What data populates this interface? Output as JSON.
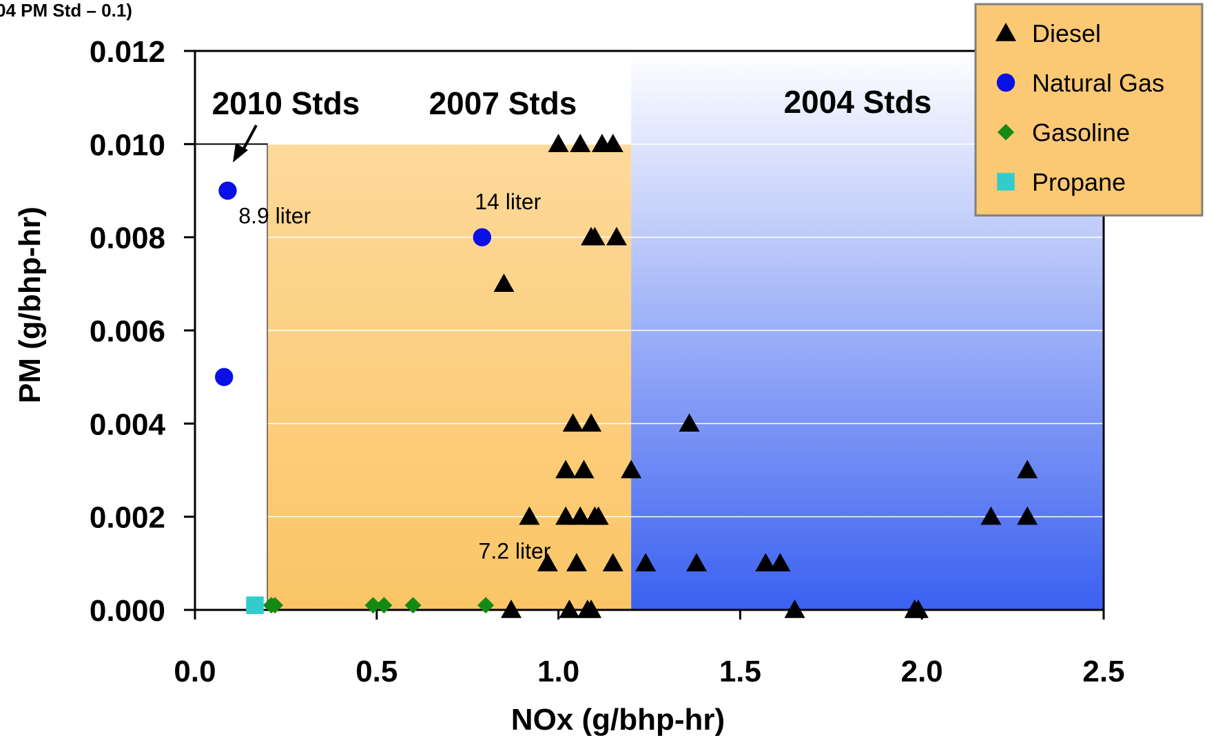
{
  "chart_data": {
    "type": "scatter",
    "xlabel": "NOx (g/bhp-hr)",
    "ylabel": "PM (g/bhp-hr)",
    "xlim": [
      0,
      2.5
    ],
    "ylim": [
      0,
      0.012
    ],
    "x_ticks": [
      "0.0",
      "0.5",
      "1.0",
      "1.5",
      "2.0",
      "2.5"
    ],
    "y_ticks": [
      "0.000",
      "0.002",
      "0.004",
      "0.006",
      "0.008",
      "0.010",
      "0.012"
    ],
    "grid": "horizontal",
    "legend_position": "top-right",
    "top_left_partial_text": "04 PM Std – 0.1)",
    "regions": [
      {
        "label": "2010 Stds",
        "x_max": 0.2,
        "y_max": 0.01,
        "color": "#ffffff"
      },
      {
        "label": "2007 Stds",
        "x_max": 1.2,
        "y_max": 0.01,
        "color": "#fbc874"
      },
      {
        "label": "2004 Stds",
        "x_max": 2.5,
        "y_max": 0.01,
        "color": "#4a6cf0"
      }
    ],
    "annotations": [
      {
        "text": "8.9 liter",
        "x": 0.12,
        "y": 0.0083
      },
      {
        "text": "14 liter",
        "x": 0.77,
        "y": 0.0086
      },
      {
        "text": "7.2 liter",
        "x": 0.78,
        "y": 0.0011
      }
    ],
    "series": [
      {
        "name": "Diesel",
        "marker": "triangle",
        "color": "#000000",
        "points": [
          [
            1.0,
            0.01
          ],
          [
            1.06,
            0.01
          ],
          [
            1.12,
            0.01
          ],
          [
            1.15,
            0.01
          ],
          [
            1.09,
            0.008
          ],
          [
            1.1,
            0.008
          ],
          [
            1.16,
            0.008
          ],
          [
            0.85,
            0.007
          ],
          [
            1.04,
            0.004
          ],
          [
            1.09,
            0.004
          ],
          [
            1.36,
            0.004
          ],
          [
            1.02,
            0.003
          ],
          [
            1.07,
            0.003
          ],
          [
            1.2,
            0.003
          ],
          [
            2.29,
            0.003
          ],
          [
            0.92,
            0.002
          ],
          [
            1.02,
            0.002
          ],
          [
            1.06,
            0.002
          ],
          [
            1.1,
            0.002
          ],
          [
            1.11,
            0.002
          ],
          [
            2.19,
            0.002
          ],
          [
            2.29,
            0.002
          ],
          [
            0.97,
            0.001
          ],
          [
            1.05,
            0.001
          ],
          [
            1.15,
            0.001
          ],
          [
            1.24,
            0.001
          ],
          [
            1.38,
            0.001
          ],
          [
            1.57,
            0.001
          ],
          [
            1.61,
            0.001
          ],
          [
            0.87,
            0.0
          ],
          [
            1.03,
            0.0
          ],
          [
            1.08,
            0.0
          ],
          [
            1.09,
            0.0
          ],
          [
            1.65,
            0.0
          ],
          [
            1.98,
            0.0
          ],
          [
            1.99,
            0.0
          ]
        ]
      },
      {
        "name": "Natural Gas",
        "marker": "circle",
        "color": "#0a0fe6",
        "points": [
          [
            0.09,
            0.009
          ],
          [
            0.08,
            0.005
          ],
          [
            0.79,
            0.008
          ]
        ]
      },
      {
        "name": "Gasoline",
        "marker": "diamond",
        "color": "#138a13",
        "points": [
          [
            0.21,
            0.0001
          ],
          [
            0.22,
            0.0001
          ],
          [
            0.49,
            0.0001
          ],
          [
            0.52,
            0.0001
          ],
          [
            0.6,
            0.0001
          ],
          [
            0.8,
            0.0001
          ]
        ]
      },
      {
        "name": "Propane",
        "marker": "square",
        "color": "#33cccc",
        "points": [
          [
            0.165,
            0.0001
          ]
        ]
      }
    ]
  },
  "legend": {
    "background": "#fbc874",
    "items": [
      {
        "label": "Diesel",
        "marker": "triangle",
        "color": "#000000"
      },
      {
        "label": "Natural Gas",
        "marker": "circle",
        "color": "#0a0fe6"
      },
      {
        "label": "Gasoline",
        "marker": "diamond",
        "color": "#138a13"
      },
      {
        "label": "Propane",
        "marker": "square",
        "color": "#33cccc"
      }
    ]
  }
}
